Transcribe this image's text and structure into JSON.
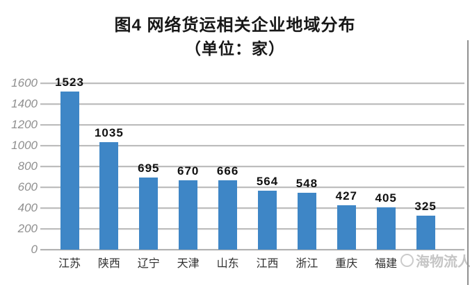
{
  "title": {
    "line1": "图4 网络货运相关企业地域分布",
    "line2": "（单位：家）"
  },
  "watermark": {
    "logo": "circle-logo",
    "text": "海物流人"
  },
  "colors": {
    "bar": "#3e86c6",
    "grid": "#bdbdbd",
    "ytick_label": "#8f8f8f",
    "value_label": "#111111",
    "category_label": "#2e2e2e",
    "title": "#171717",
    "watermark": "#9a9a9a",
    "background": "#ffffff"
  },
  "chart_data": {
    "type": "bar",
    "title": "图4 网络货运相关企业地域分布",
    "subtitle": "（单位：家）",
    "categories": [
      "江苏",
      "陕西",
      "辽宁",
      "天津",
      "山东",
      "江西",
      "浙江",
      "重庆",
      "福建",
      ""
    ],
    "values": [
      1523,
      1035,
      695,
      670,
      666,
      564,
      548,
      427,
      405,
      325
    ],
    "bar_color": "#3e86c6",
    "xlabel": "",
    "ylabel": "",
    "ylim": [
      0,
      1600
    ],
    "yticks": [
      0,
      200,
      400,
      600,
      800,
      1000,
      1200,
      1400,
      1600
    ],
    "grid": true,
    "legend": false,
    "value_labels_shown": true,
    "last_category_obscured_by_watermark": true
  }
}
